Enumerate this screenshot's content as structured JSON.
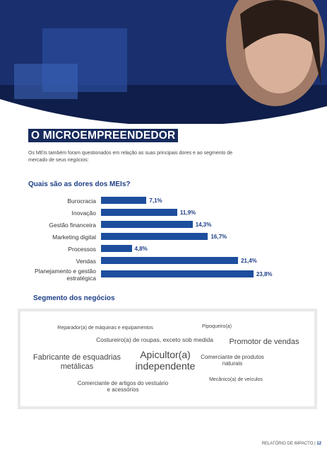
{
  "section_title": "O MICROEMPREENDEDOR",
  "intro": "Os MEIs também foram questionados em relação as suas principais dores e ao segmento de mercado de seus negócios:",
  "chart_data": {
    "type": "bar",
    "orientation": "horizontal",
    "title": "Quais são as dores dos MEIs?",
    "categories": [
      "Burocracia",
      "Inovação",
      "Gestão financeira",
      "Marketing digital",
      "Processos",
      "Vendas",
      "Planejamento e gestão estratégica"
    ],
    "values": [
      7.1,
      11.9,
      14.3,
      16.7,
      4.8,
      21.4,
      23.8
    ],
    "value_labels": [
      "7,1%",
      "11,9%",
      "14,3%",
      "16,7%",
      "4,8%",
      "21,4%",
      "23,8%"
    ],
    "color": "#1d4e9e"
  },
  "segment": {
    "title": "Segmento dos negócios",
    "words": [
      "Reparador(a) de máquinas e equipamentos",
      "Pipoqueiro(a)",
      "Costureiro(a) de roupas, exceto sob medida",
      "Promotor de vendas",
      "Fabricante de esquadrias metálicas",
      "Apicultor(a) independente",
      "Comerciante de produtos naturais",
      "Mecânico(a) de veículos",
      "Comerciante de artigos do vestuário e acessórios"
    ]
  },
  "footer": {
    "label": "RELATÓRIO DE IMPACTO",
    "page": "12"
  }
}
